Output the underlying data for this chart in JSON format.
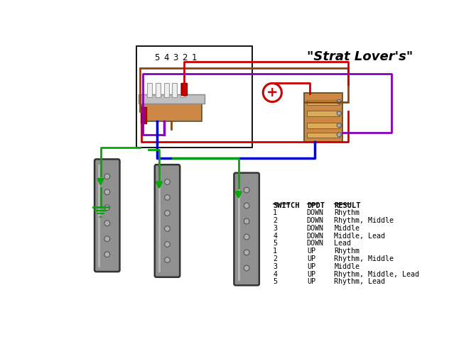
{
  "title": "\"Strat Lover's\"",
  "bg_color": "#ffffff",
  "wire_red": "#cc0000",
  "wire_blue": "#0000cc",
  "wire_purple": "#8800bb",
  "wire_brown": "#8B4513",
  "wire_green": "#00aa00",
  "switch_numbers": [
    "5",
    "4",
    "3",
    "2",
    "1"
  ],
  "table_headers": [
    "SWITCH",
    "DPDT",
    "RESULT"
  ],
  "table_rows": [
    [
      "1",
      "DOWN",
      "Rhythm"
    ],
    [
      "2",
      "DOWN",
      "Rhythm, Middle"
    ],
    [
      "3",
      "DOWN",
      "Middle"
    ],
    [
      "4",
      "DOWN",
      "Middle, Lead"
    ],
    [
      "5",
      "DOWN",
      "Lead"
    ],
    [
      "1",
      "UP",
      "Rhythm"
    ],
    [
      "2",
      "UP",
      "Rhythm, Middle"
    ],
    [
      "3",
      "UP",
      "Middle"
    ],
    [
      "4",
      "UP",
      "Rhythm, Middle, Lead"
    ],
    [
      "5",
      "UP",
      "Rhythm, Lead"
    ]
  ]
}
